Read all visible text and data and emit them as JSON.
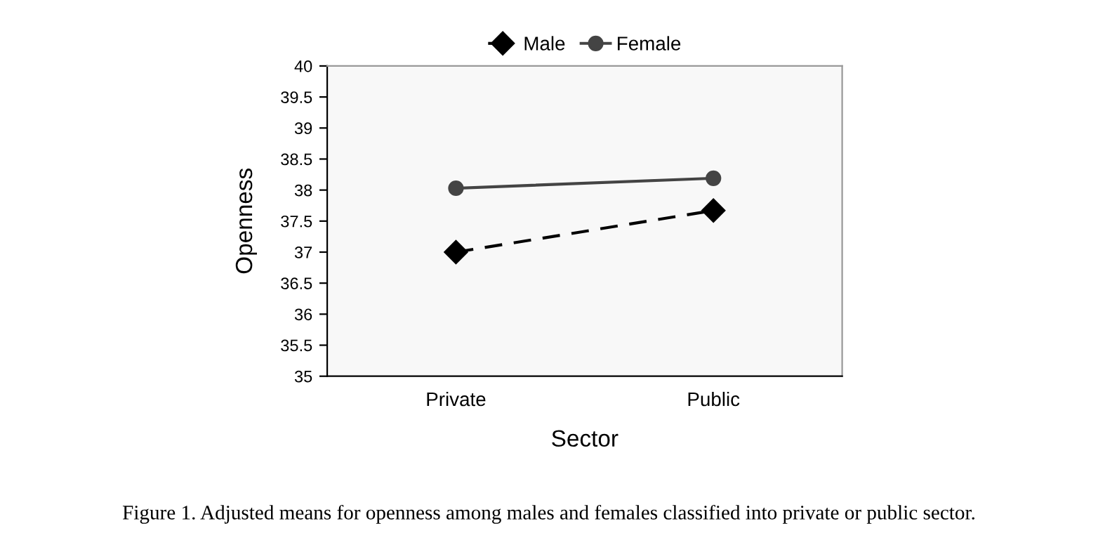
{
  "chart_data": {
    "type": "line",
    "xlabel": "Sector",
    "ylabel": "Openness",
    "categories": [
      "Private",
      "Public"
    ],
    "series": [
      {
        "name": "Male",
        "color": "#000000",
        "values": [
          37.0,
          37.67
        ],
        "marker": "diamond",
        "line_style": "dashed"
      },
      {
        "name": "Female",
        "color": "#444444",
        "values": [
          38.03,
          38.19
        ],
        "marker": "circle",
        "line_style": "solid"
      }
    ],
    "ylim": [
      35,
      40
    ],
    "yticks": [
      35,
      35.5,
      36,
      36.5,
      37,
      37.5,
      38,
      38.5,
      39,
      39.5,
      40
    ],
    "grid": false,
    "legend": "top",
    "annotations": [
      "Figure 1. Adjusted means for openness among males and females classified into private or public sector."
    ]
  }
}
